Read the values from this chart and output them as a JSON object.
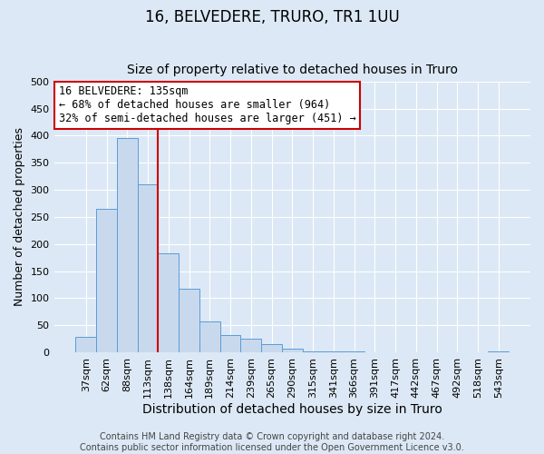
{
  "title": "16, BELVEDERE, TRURO, TR1 1UU",
  "subtitle": "Size of property relative to detached houses in Truro",
  "xlabel": "Distribution of detached houses by size in Truro",
  "ylabel": "Number of detached properties",
  "bar_color": "#c9d9ed",
  "bar_edge_color": "#5b9bd5",
  "background_color": "#dce8f5",
  "grid_color": "#ffffff",
  "categories": [
    "37sqm",
    "62sqm",
    "88sqm",
    "113sqm",
    "138sqm",
    "164sqm",
    "189sqm",
    "214sqm",
    "239sqm",
    "265sqm",
    "290sqm",
    "315sqm",
    "341sqm",
    "366sqm",
    "391sqm",
    "417sqm",
    "442sqm",
    "467sqm",
    "492sqm",
    "518sqm",
    "543sqm"
  ],
  "values": [
    28,
    265,
    395,
    310,
    182,
    118,
    57,
    32,
    25,
    15,
    6,
    1,
    1,
    1,
    0,
    0,
    0,
    0,
    0,
    0,
    2
  ],
  "vline_color": "#cc0000",
  "vline_position": 3.5,
  "annotation_line1": "16 BELVEDERE: 135sqm",
  "annotation_line2": "← 68% of detached houses are smaller (964)",
  "annotation_line3": "32% of semi-detached houses are larger (451) →",
  "annotation_box_color": "#ffffff",
  "annotation_box_edge_color": "#cc0000",
  "ylim": [
    0,
    500
  ],
  "yticks": [
    0,
    50,
    100,
    150,
    200,
    250,
    300,
    350,
    400,
    450,
    500
  ],
  "footer": "Contains HM Land Registry data © Crown copyright and database right 2024.\nContains public sector information licensed under the Open Government Licence v3.0.",
  "title_fontsize": 12,
  "subtitle_fontsize": 10,
  "xlabel_fontsize": 10,
  "ylabel_fontsize": 9,
  "tick_fontsize": 8,
  "footer_fontsize": 7,
  "annot_fontsize": 8.5
}
